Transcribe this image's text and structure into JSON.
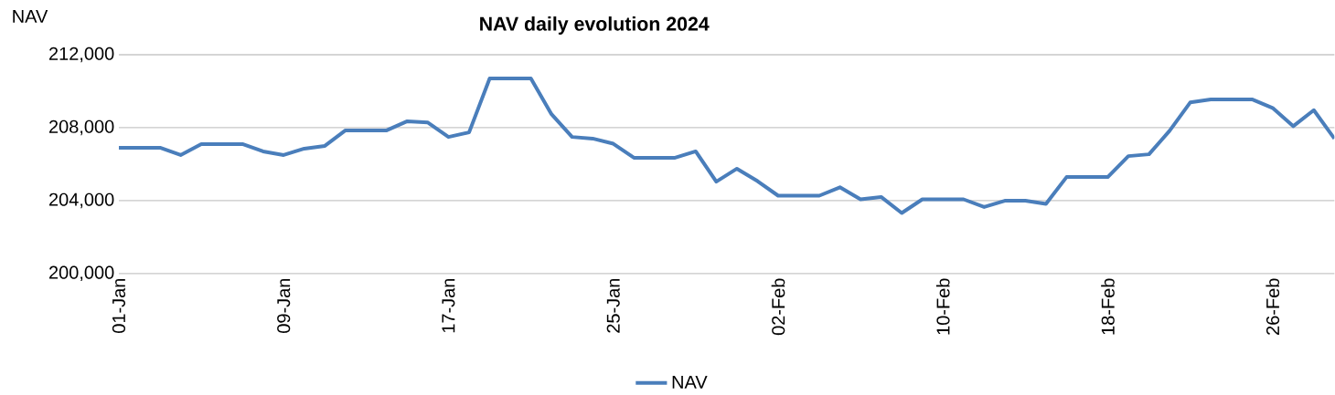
{
  "chart_data": {
    "type": "line",
    "title": "NAV daily evolution 2024",
    "ylabel": "NAV",
    "x": [
      "2024-01-01",
      "2024-01-02",
      "2024-01-03",
      "2024-01-04",
      "2024-01-05",
      "2024-01-06",
      "2024-01-07",
      "2024-01-08",
      "2024-01-09",
      "2024-01-10",
      "2024-01-11",
      "2024-01-12",
      "2024-01-13",
      "2024-01-14",
      "2024-01-15",
      "2024-01-16",
      "2024-01-17",
      "2024-01-18",
      "2024-01-19",
      "2024-01-20",
      "2024-01-21",
      "2024-01-22",
      "2024-01-23",
      "2024-01-24",
      "2024-01-25",
      "2024-01-26",
      "2024-01-27",
      "2024-01-28",
      "2024-01-29",
      "2024-01-30",
      "2024-01-31",
      "2024-02-01",
      "2024-02-02",
      "2024-02-03",
      "2024-02-04",
      "2024-02-05",
      "2024-02-06",
      "2024-02-07",
      "2024-02-08",
      "2024-02-09",
      "2024-02-10",
      "2024-02-11",
      "2024-02-12",
      "2024-02-13",
      "2024-02-14",
      "2024-02-15",
      "2024-02-16",
      "2024-02-17",
      "2024-02-18",
      "2024-02-19",
      "2024-02-20",
      "2024-02-21",
      "2024-02-22",
      "2024-02-23",
      "2024-02-24",
      "2024-02-25",
      "2024-02-26",
      "2024-02-27",
      "2024-02-28",
      "2024-02-29"
    ],
    "series": [
      {
        "name": "NAV",
        "color": "#4a7ebb",
        "values": [
          206900,
          206900,
          206900,
          206500,
          207100,
          207100,
          207100,
          206700,
          206500,
          206850,
          207000,
          207850,
          207850,
          207850,
          208350,
          208280,
          207490,
          207740,
          210700,
          210700,
          210700,
          208740,
          207490,
          207400,
          207120,
          206350,
          206350,
          206350,
          206700,
          205040,
          205750,
          205070,
          204270,
          204270,
          204270,
          204730,
          204070,
          204200,
          203320,
          204070,
          204070,
          204070,
          203650,
          203990,
          203990,
          203820,
          205290,
          205290,
          205290,
          206440,
          206540,
          207830,
          209380,
          209550,
          209550,
          209550,
          209080,
          208080,
          208960,
          207400
        ]
      }
    ],
    "xlim": [
      "2024-01-01",
      "2024-02-29"
    ],
    "xticks": [
      {
        "value": "2024-01-01",
        "label": "01-Jan"
      },
      {
        "value": "2024-01-09",
        "label": "09-Jan"
      },
      {
        "value": "2024-01-17",
        "label": "17-Jan"
      },
      {
        "value": "2024-01-25",
        "label": "25-Jan"
      },
      {
        "value": "2024-02-02",
        "label": "02-Feb"
      },
      {
        "value": "2024-02-10",
        "label": "10-Feb"
      },
      {
        "value": "2024-02-18",
        "label": "18-Feb"
      },
      {
        "value": "2024-02-26",
        "label": "26-Feb"
      }
    ],
    "ylim": [
      200000,
      212000
    ],
    "yticks": [
      {
        "value": 200000,
        "label": "200,000"
      },
      {
        "value": 204000,
        "label": "204,000"
      },
      {
        "value": 208000,
        "label": "208,000"
      },
      {
        "value": 212000,
        "label": "212,000"
      }
    ],
    "grid": "y",
    "legend": "bottom",
    "marker": "none",
    "line_style": "solid"
  }
}
